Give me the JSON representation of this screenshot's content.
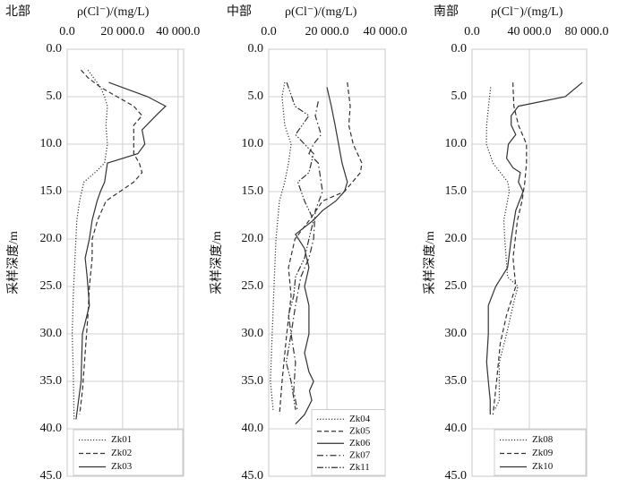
{
  "chart_data": [
    {
      "type": "line",
      "title": "北部",
      "xlabel": "ρ(Cl⁻)/(mg/L)",
      "ylabel": "采样深度/m",
      "x_axis_position": "top",
      "y_inverted": true,
      "grid": true,
      "legend": "lower center",
      "xlim": [
        0,
        42000
      ],
      "xticks": [
        {
          "value": 0,
          "label": "0.0"
        },
        {
          "value": 20000,
          "label": "20 000.0"
        },
        {
          "value": 40000,
          "label": "40 000.0"
        }
      ],
      "ylim": [
        0,
        45
      ],
      "yticks": [
        {
          "value": 0,
          "label": "0.0"
        },
        {
          "value": 5,
          "label": "5.0"
        },
        {
          "value": 10,
          "label": "10.0"
        },
        {
          "value": 15,
          "label": "15.0"
        },
        {
          "value": 20,
          "label": "20.0"
        },
        {
          "value": 25,
          "label": "25.0"
        },
        {
          "value": 30,
          "label": "30.0"
        },
        {
          "value": 35,
          "label": "35.0"
        },
        {
          "value": 40,
          "label": "40.0"
        },
        {
          "value": 45,
          "label": "45.0"
        }
      ],
      "series": [
        {
          "name": "Zk01",
          "color": "#333333",
          "style": "dotted",
          "depth": [
            2.2,
            3,
            4,
            5,
            6,
            8,
            10,
            12,
            13,
            14,
            16,
            18,
            22,
            26,
            30,
            34,
            39
          ],
          "values": [
            7500,
            9500,
            12000,
            13500,
            14500,
            14000,
            14500,
            13500,
            10000,
            6000,
            4500,
            3500,
            2800,
            2200,
            1800,
            2200,
            2500
          ]
        },
        {
          "name": "Zk02",
          "color": "#333333",
          "style": "dashed",
          "depth": [
            2.2,
            3,
            4,
            5,
            6,
            7,
            8,
            9,
            10,
            11,
            12,
            13,
            14,
            15,
            16,
            18,
            20,
            22,
            25,
            28,
            32,
            36,
            38.5
          ],
          "values": [
            5000,
            7500,
            12000,
            18000,
            24000,
            27000,
            24000,
            24000,
            24000,
            24000,
            26000,
            27000,
            24000,
            19000,
            14000,
            11000,
            9000,
            9000,
            8000,
            7500,
            6500,
            5500,
            4500
          ]
        },
        {
          "name": "Zk03",
          "color": "#333333",
          "style": "solid",
          "depth": [
            3.5,
            5,
            6,
            7,
            8.5,
            10,
            11,
            12,
            14,
            15,
            16,
            18,
            20,
            22,
            24,
            27,
            30,
            35,
            39
          ],
          "values": [
            15000,
            29000,
            35500,
            32000,
            27000,
            28000,
            25500,
            14500,
            13500,
            12000,
            10800,
            9000,
            8000,
            6500,
            7200,
            8000,
            5500,
            5000,
            3200
          ]
        }
      ]
    },
    {
      "type": "line",
      "title": "中部",
      "xlabel": "ρ(Cl⁻)/(mg/L)",
      "ylabel": "采样深度/m",
      "x_axis_position": "top",
      "y_inverted": true,
      "grid": true,
      "legend": "lower center",
      "xlim": [
        0,
        40000
      ],
      "xticks": [
        {
          "value": 0,
          "label": "0.0"
        },
        {
          "value": 20000,
          "label": "20 000.0"
        },
        {
          "value": 40000,
          "label": "40 000.0"
        }
      ],
      "ylim": [
        0,
        45
      ],
      "yticks": [
        {
          "value": 0,
          "label": "0.0"
        },
        {
          "value": 5,
          "label": "5.0"
        },
        {
          "value": 10,
          "label": "10.0"
        },
        {
          "value": 15,
          "label": "15.0"
        },
        {
          "value": 20,
          "label": "20.0"
        },
        {
          "value": 25,
          "label": "25.0"
        },
        {
          "value": 30,
          "label": "30.0"
        },
        {
          "value": 35,
          "label": "35.0"
        },
        {
          "value": 40,
          "label": "40.0"
        },
        {
          "value": 45,
          "label": "45.0"
        }
      ],
      "series": [
        {
          "name": "Zk04",
          "color": "#333333",
          "style": "dotted",
          "depth": [
            3.5,
            5,
            8,
            10,
            12,
            14,
            16,
            20,
            25,
            30,
            35,
            38
          ],
          "values": [
            5500,
            4600,
            5500,
            7700,
            6800,
            5500,
            3700,
            2500,
            1800,
            1200,
            600,
            1500
          ]
        },
        {
          "name": "Zk05",
          "color": "#333333",
          "style": "dashed",
          "depth": [
            3.5,
            6,
            8,
            10,
            12,
            13,
            15,
            16,
            18,
            20,
            23,
            26,
            30,
            35,
            38.5
          ],
          "values": [
            27000,
            28000,
            27500,
            29000,
            32000,
            31500,
            26000,
            18500,
            14000,
            9000,
            6800,
            7700,
            6200,
            4600,
            3700
          ]
        },
        {
          "name": "Zk06",
          "color": "#333333",
          "style": "solid",
          "depth": [
            4,
            6,
            8,
            10,
            12,
            14,
            15,
            16,
            17,
            18,
            19.5,
            21,
            23,
            25,
            27,
            30,
            32,
            34,
            35,
            36,
            37,
            38.5,
            39.5
          ],
          "values": [
            20000,
            21500,
            22800,
            24000,
            25200,
            27000,
            26000,
            23000,
            18500,
            15400,
            9200,
            12300,
            13800,
            12300,
            13800,
            13800,
            12300,
            13800,
            15400,
            14000,
            14800,
            12300,
            9200
          ]
        },
        {
          "name": "Zk07",
          "color": "#333333",
          "style": "dashdot",
          "depth": [
            5.5,
            7,
            9,
            10,
            11,
            12,
            14,
            15,
            17,
            20,
            22,
            24,
            27,
            30,
            33,
            36,
            38
          ],
          "values": [
            17000,
            16000,
            18000,
            15400,
            13800,
            17000,
            18000,
            18500,
            16000,
            15400,
            13800,
            11000,
            9200,
            7700,
            9200,
            8600,
            9800
          ]
        },
        {
          "name": "Zk11",
          "color": "#333333",
          "style": "dashdotdot",
          "depth": [
            3.5,
            6,
            7,
            9,
            11,
            13,
            14,
            16,
            18,
            20,
            22,
            24,
            26,
            28,
            30,
            33,
            35,
            38
          ],
          "values": [
            6200,
            9000,
            13800,
            9200,
            15400,
            13800,
            10000,
            12300,
            15400,
            13800,
            12300,
            9200,
            8600,
            6800,
            7700,
            6000,
            7700,
            9200
          ]
        }
      ]
    },
    {
      "type": "line",
      "title": "南部",
      "xlabel": "ρ(Cl⁻)/(mg/L)",
      "ylabel": "采样深度/m",
      "x_axis_position": "top",
      "y_inverted": true,
      "grid": true,
      "legend": "lower center",
      "xlim": [
        0,
        80000
      ],
      "xticks": [
        {
          "value": 0,
          "label": "0.0"
        },
        {
          "value": 40000,
          "label": "40 000.0"
        },
        {
          "value": 80000,
          "label": "80 000.0"
        }
      ],
      "ylim": [
        0,
        45
      ],
      "yticks": [
        {
          "value": 0,
          "label": "0.0"
        },
        {
          "value": 5,
          "label": "5.0"
        },
        {
          "value": 10,
          "label": "10.0"
        },
        {
          "value": 15,
          "label": "15.0"
        },
        {
          "value": 20,
          "label": "20.0"
        },
        {
          "value": 25,
          "label": "25.0"
        },
        {
          "value": 30,
          "label": "30.0"
        },
        {
          "value": 35,
          "label": "35.0"
        },
        {
          "value": 40,
          "label": "40.0"
        },
        {
          "value": 45,
          "label": "45.0"
        }
      ],
      "series": [
        {
          "name": "Zk08",
          "color": "#333333",
          "style": "dotted",
          "depth": [
            4,
            6,
            8,
            10,
            12,
            14,
            15,
            18,
            20,
            24,
            25,
            27,
            30,
            33,
            37,
            38
          ],
          "values": [
            13000,
            11500,
            10200,
            10000,
            14600,
            25000,
            26000,
            22200,
            22800,
            24800,
            32000,
            28600,
            24100,
            19000,
            19000,
            15900
          ]
        },
        {
          "name": "Zk09",
          "color": "#333333",
          "style": "dashed",
          "depth": [
            3.5,
            6,
            8,
            10,
            12,
            14,
            16,
            18,
            22,
            25,
            28,
            31,
            35,
            38.5
          ],
          "values": [
            28500,
            29200,
            32400,
            38000,
            38000,
            36800,
            34900,
            31700,
            28600,
            30500,
            24100,
            19700,
            17100,
            14600
          ]
        },
        {
          "name": "Zk10",
          "color": "#333333",
          "style": "solid",
          "depth": [
            3.5,
            5,
            6,
            7,
            8,
            9,
            10,
            11.5,
            12.5,
            13,
            14,
            15,
            17,
            20,
            23,
            25,
            27,
            30,
            33,
            35,
            37,
            38.5
          ],
          "values": [
            77000,
            65000,
            32400,
            27300,
            27300,
            30500,
            25400,
            24100,
            28600,
            33700,
            32400,
            35600,
            30500,
            27300,
            24800,
            16500,
            11400,
            11400,
            10200,
            11400,
            12700,
            12700
          ]
        }
      ]
    }
  ]
}
